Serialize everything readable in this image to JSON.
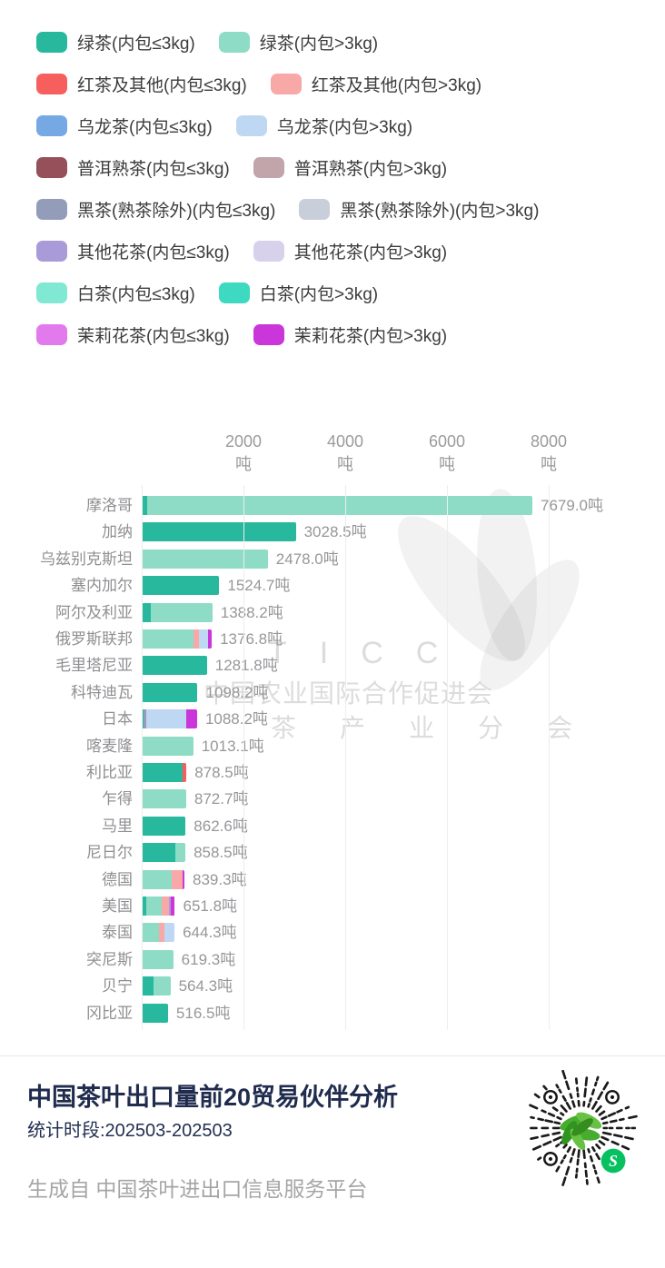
{
  "series_colors": {
    "绿茶(内包≤3kg)": "#27b89d",
    "绿茶(内包>3kg)": "#8edcc6",
    "红茶及其他(内包≤3kg)": "#f75f5f",
    "红茶及其他(内包>3kg)": "#f8a8a6",
    "乌龙茶(内包≤3kg)": "#76a9e4",
    "乌龙茶(内包>3kg)": "#bed7f2",
    "普洱熟茶(内包≤3kg)": "#96505a",
    "普洱熟茶(内包>3kg)": "#c2a5ab",
    "黑茶(熟茶除外)(内包≤3kg)": "#939dba",
    "黑茶(熟茶除外)(内包>3kg)": "#c9cedb",
    "其他花茶(内包≤3kg)": "#a99bd7",
    "其他花茶(内包>3kg)": "#d8d1ec",
    "白茶(内包≤3kg)": "#80e8d3",
    "白茶(内包>3kg)": "#3dd9c1",
    "茉莉花茶(内包≤3kg)": "#e27aee",
    "茉莉花茶(内包>3kg)": "#cb36da"
  },
  "legend_rows": [
    [
      "绿茶(内包≤3kg)",
      "绿茶(内包>3kg)"
    ],
    [
      "红茶及其他(内包≤3kg)",
      "红茶及其他(内包>3kg)"
    ],
    [
      "乌龙茶(内包≤3kg)",
      "乌龙茶(内包>3kg)"
    ],
    [
      "普洱熟茶(内包≤3kg)",
      "普洱熟茶(内包>3kg)"
    ],
    [
      "黑茶(熟茶除外)(内包≤3kg)",
      "黑茶(熟茶除外)(内包>3kg)"
    ],
    [
      "其他花茶(内包≤3kg)",
      "其他花茶(内包>3kg)"
    ],
    [
      "白茶(内包≤3kg)",
      "白茶(内包>3kg)"
    ],
    [
      "茉莉花茶(内包≤3kg)",
      "茉莉花茶(内包>3kg)"
    ]
  ],
  "chart_data": {
    "type": "bar",
    "orientation": "horizontal",
    "stacked": true,
    "title": "中国茶叶出口量前20贸易伙伴分析",
    "unit": "吨",
    "x_ticks": [
      2000,
      4000,
      6000,
      8000
    ],
    "xlim": [
      0,
      8800
    ],
    "grid": true,
    "legend_position": "top",
    "categories": [
      "摩洛哥",
      "加纳",
      "乌兹别克斯坦",
      "塞内加尔",
      "阿尔及利亚",
      "俄罗斯联邦",
      "毛里塔尼亚",
      "科特迪瓦",
      "日本",
      "喀麦隆",
      "利比亚",
      "乍得",
      "马里",
      "尼日尔",
      "德国",
      "美国",
      "泰国",
      "突尼斯",
      "贝宁",
      "冈比亚"
    ],
    "values": [
      7679.0,
      3028.5,
      2478.0,
      1524.7,
      1388.2,
      1376.8,
      1281.8,
      1098.2,
      1088.2,
      1013.1,
      878.5,
      872.7,
      862.6,
      858.5,
      839.3,
      651.8,
      644.3,
      619.3,
      564.3,
      516.5
    ],
    "bars": [
      {
        "country": "摩洛哥",
        "value": 7679.0,
        "label": "7679.0吨",
        "segments": [
          [
            "绿茶(内包≤3kg)",
            1.5
          ],
          [
            "绿茶(内包>3kg)",
            98.5
          ]
        ]
      },
      {
        "country": "加纳",
        "value": 3028.5,
        "label": "3028.5吨",
        "segments": [
          [
            "绿茶(内包≤3kg)",
            100
          ]
        ]
      },
      {
        "country": "乌兹别克斯坦",
        "value": 2478.0,
        "label": "2478.0吨",
        "segments": [
          [
            "绿茶(内包>3kg)",
            100
          ]
        ]
      },
      {
        "country": "塞内加尔",
        "value": 1524.7,
        "label": "1524.7吨",
        "segments": [
          [
            "绿茶(内包≤3kg)",
            100
          ]
        ]
      },
      {
        "country": "阿尔及利亚",
        "value": 1388.2,
        "label": "1388.2吨",
        "segments": [
          [
            "绿茶(内包≤3kg)",
            13
          ],
          [
            "绿茶(内包>3kg)",
            87
          ]
        ]
      },
      {
        "country": "俄罗斯联邦",
        "value": 1376.8,
        "label": "1376.8吨",
        "segments": [
          [
            "绿茶(内包>3kg)",
            74
          ],
          [
            "红茶及其他(内包>3kg)",
            8
          ],
          [
            "乌龙茶(内包>3kg)",
            13
          ],
          [
            "茉莉花茶(内包>3kg)",
            5
          ]
        ]
      },
      {
        "country": "毛里塔尼亚",
        "value": 1281.8,
        "label": "1281.8吨",
        "segments": [
          [
            "绿茶(内包≤3kg)",
            100
          ]
        ]
      },
      {
        "country": "科特迪瓦",
        "value": 1098.2,
        "label": "1098.2吨",
        "segments": [
          [
            "绿茶(内包≤3kg)",
            100
          ]
        ]
      },
      {
        "country": "日本",
        "value": 1088.2,
        "label": "1088.2吨",
        "segments": [
          [
            "绿茶(内包≤3kg)",
            4
          ],
          [
            "黑茶(熟茶除外)(内包≤3kg)",
            4
          ],
          [
            "乌龙茶(内包>3kg)",
            72
          ],
          [
            "茉莉花茶(内包>3kg)",
            20
          ]
        ]
      },
      {
        "country": "喀麦隆",
        "value": 1013.1,
        "label": "1013.1吨",
        "segments": [
          [
            "绿茶(内包>3kg)",
            100
          ]
        ]
      },
      {
        "country": "利比亚",
        "value": 878.5,
        "label": "878.5吨",
        "segments": [
          [
            "绿茶(内包≤3kg)",
            92
          ],
          [
            "红茶及其他(内包≤3kg)",
            8
          ]
        ]
      },
      {
        "country": "乍得",
        "value": 872.7,
        "label": "872.7吨",
        "segments": [
          [
            "绿茶(内包>3kg)",
            100
          ]
        ]
      },
      {
        "country": "马里",
        "value": 862.6,
        "label": "862.6吨",
        "segments": [
          [
            "绿茶(内包≤3kg)",
            100
          ]
        ]
      },
      {
        "country": "尼日尔",
        "value": 858.5,
        "label": "858.5吨",
        "segments": [
          [
            "绿茶(内包≤3kg)",
            78
          ],
          [
            "绿茶(内包>3kg)",
            22
          ]
        ]
      },
      {
        "country": "德国",
        "value": 839.3,
        "label": "839.3吨",
        "segments": [
          [
            "绿茶(内包>3kg)",
            70
          ],
          [
            "红茶及其他(内包>3kg)",
            26
          ],
          [
            "茉莉花茶(内包>3kg)",
            4
          ]
        ]
      },
      {
        "country": "美国",
        "value": 651.8,
        "label": "651.8吨",
        "segments": [
          [
            "绿茶(内包≤3kg)",
            14
          ],
          [
            "绿茶(内包>3kg)",
            47
          ],
          [
            "红茶及其他(内包>3kg)",
            21
          ],
          [
            "其他花茶(内包≤3kg)",
            6
          ],
          [
            "茉莉花茶(内包>3kg)",
            12
          ]
        ]
      },
      {
        "country": "泰国",
        "value": 644.3,
        "label": "644.3吨",
        "segments": [
          [
            "绿茶(内包>3kg)",
            52
          ],
          [
            "红茶及其他(内包>3kg)",
            17
          ],
          [
            "乌龙茶(内包>3kg)",
            31
          ]
        ]
      },
      {
        "country": "突尼斯",
        "value": 619.3,
        "label": "619.3吨",
        "segments": [
          [
            "绿茶(内包>3kg)",
            100
          ]
        ]
      },
      {
        "country": "贝宁",
        "value": 564.3,
        "label": "564.3吨",
        "segments": [
          [
            "绿茶(内包≤3kg)",
            42
          ],
          [
            "绿茶(内包>3kg)",
            58
          ]
        ]
      },
      {
        "country": "冈比亚",
        "value": 516.5,
        "label": "516.5吨",
        "segments": [
          [
            "绿茶(内包≤3kg)",
            100
          ]
        ]
      }
    ]
  },
  "watermark": {
    "ticc": "TICC",
    "org": "中国农业国际合作促进会",
    "branch": "茶产业分会"
  },
  "footer": {
    "title": "中国茶叶出口量前20贸易伙伴分析",
    "subtitle": "统计时段:202503-202503",
    "credit": "生成自 中国茶叶进出口信息服务平台"
  }
}
